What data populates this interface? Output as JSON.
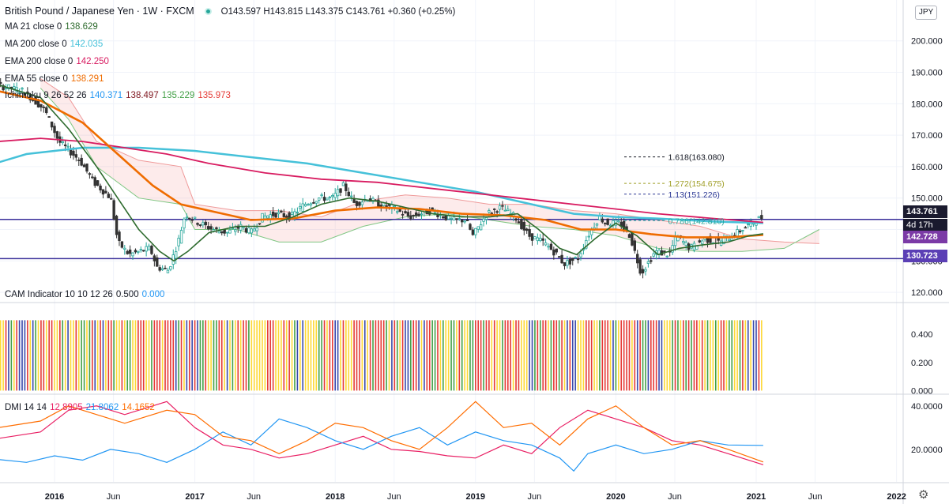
{
  "header": {
    "title": "British Pound / Japanese Yen · 1W · FXCM",
    "ohlc": "O143.597 H143.815 L143.375 C143.761 +0.360 (+0.25%)",
    "currency_button": "JPY"
  },
  "legends": {
    "ma21": {
      "label": "MA 21 close 0",
      "value": "138.629",
      "color": "#2e6b2e"
    },
    "ma200": {
      "label": "MA 200 close 0",
      "value": "142.035",
      "color": "#45c1d9"
    },
    "ema200": {
      "label": "EMA 200 close 0",
      "value": "142.250",
      "color": "#d81b60"
    },
    "ema55": {
      "label": "EMA 55 close 0",
      "value": "138.291",
      "color": "#ef6c00"
    },
    "ichimoku": {
      "label": "Ichimoku 9 26 52 26",
      "values": [
        "140.371",
        "138.497",
        "135.229",
        "135.973"
      ],
      "colors": [
        "#2196f3",
        "#801922",
        "#43a047",
        "#e53935"
      ]
    },
    "cam": {
      "label": "CAM Indicator 10 10 12 26",
      "values": [
        "0.500",
        "0.000"
      ],
      "colors": [
        "#131722",
        "#2196f3"
      ]
    },
    "dmi": {
      "label": "DMI 14 14",
      "values": [
        "12.8905",
        "21.8062",
        "14.1652"
      ],
      "colors": [
        "#e91e63",
        "#2196f3",
        "#ff6d00"
      ]
    }
  },
  "price_labels": [
    {
      "text": "143.761",
      "color": "#1a1a2e"
    },
    {
      "text": "4d 17h",
      "color": "#1a1a2e"
    },
    {
      "text": "142.728",
      "color": "#7b3aa6"
    },
    {
      "text": "130.723",
      "color": "#5b3fb5"
    }
  ],
  "fib_labels": [
    {
      "text": "1.618(163.080)",
      "value": 163.08,
      "color": "#131722"
    },
    {
      "text": "1.272(154.675)",
      "value": 154.675,
      "color": "#9e9d24"
    },
    {
      "text": "1.13(151.226)",
      "value": 151.226,
      "color": "#283593"
    },
    {
      "text": "0.786(142.810)",
      "value": 142.81,
      "color": "#26a69a"
    }
  ],
  "chart_data": {
    "type": "candlestick",
    "x_axis": {
      "labels": [
        "2016",
        "Jun",
        "2017",
        "Jun",
        "2018",
        "Jun",
        "2019",
        "Jun",
        "2020",
        "Jun",
        "2021",
        "Jun",
        "2022"
      ],
      "positions": [
        2016.0,
        2016.42,
        2017.0,
        2017.42,
        2018.0,
        2018.42,
        2019.0,
        2019.42,
        2020.0,
        2020.42,
        2021.0,
        2021.42,
        2022.0
      ]
    },
    "price_axis": {
      "ticks": [
        "120.000",
        "130.000",
        "140.000",
        "150.000",
        "160.000",
        "170.000",
        "180.000",
        "190.000",
        "200.000"
      ],
      "range": [
        117,
        213
      ]
    },
    "cam_axis": {
      "ticks": [
        "0.000",
        "0.200",
        "0.400"
      ],
      "range": [
        -0.02,
        0.62
      ]
    },
    "dmi_axis": {
      "ticks": [
        "20.0000",
        "40.0000"
      ],
      "range": [
        5,
        45
      ]
    },
    "horizontal_lines": [
      {
        "value": 143.2,
        "color": "#3a2f9a"
      },
      {
        "value": 130.723,
        "color": "#3a2f9a"
      }
    ],
    "price_path": [
      [
        2015.25,
        185
      ],
      [
        2015.6,
        186
      ],
      [
        2015.8,
        184
      ],
      [
        2015.95,
        178
      ],
      [
        2016.05,
        168
      ],
      [
        2016.2,
        162
      ],
      [
        2016.3,
        155
      ],
      [
        2016.42,
        150
      ],
      [
        2016.47,
        136
      ],
      [
        2016.55,
        132
      ],
      [
        2016.7,
        134
      ],
      [
        2016.75,
        128
      ],
      [
        2016.83,
        127
      ],
      [
        2016.9,
        136
      ],
      [
        2016.95,
        145
      ],
      [
        2017.05,
        142
      ],
      [
        2017.15,
        140
      ],
      [
        2017.25,
        139
      ],
      [
        2017.35,
        141
      ],
      [
        2017.42,
        139
      ],
      [
        2017.5,
        144
      ],
      [
        2017.6,
        145
      ],
      [
        2017.7,
        144
      ],
      [
        2017.8,
        148
      ],
      [
        2017.9,
        150
      ],
      [
        2018.0,
        150
      ],
      [
        2018.08,
        154
      ],
      [
        2018.16,
        148
      ],
      [
        2018.25,
        150
      ],
      [
        2018.32,
        148
      ],
      [
        2018.42,
        147
      ],
      [
        2018.55,
        144
      ],
      [
        2018.7,
        146
      ],
      [
        2018.85,
        143
      ],
      [
        2018.95,
        143
      ],
      [
        2019.0,
        138
      ],
      [
        2019.1,
        145
      ],
      [
        2019.2,
        147
      ],
      [
        2019.3,
        144
      ],
      [
        2019.4,
        138
      ],
      [
        2019.5,
        136
      ],
      [
        2019.6,
        132
      ],
      [
        2019.65,
        129
      ],
      [
        2019.75,
        131
      ],
      [
        2019.82,
        138
      ],
      [
        2019.9,
        144
      ],
      [
        2019.95,
        142
      ],
      [
        2020.05,
        142
      ],
      [
        2020.12,
        138
      ],
      [
        2020.2,
        126
      ],
      [
        2020.3,
        133
      ],
      [
        2020.4,
        132
      ],
      [
        2020.45,
        138
      ],
      [
        2020.55,
        134
      ],
      [
        2020.65,
        137
      ],
      [
        2020.75,
        136
      ],
      [
        2020.85,
        138
      ],
      [
        2020.95,
        141
      ],
      [
        2021.05,
        143.761
      ]
    ],
    "ma21_path": [
      [
        2015.25,
        188
      ],
      [
        2015.6,
        186
      ],
      [
        2015.9,
        182
      ],
      [
        2016.1,
        172
      ],
      [
        2016.3,
        160
      ],
      [
        2016.45,
        150
      ],
      [
        2016.6,
        140
      ],
      [
        2016.75,
        133
      ],
      [
        2016.85,
        130
      ],
      [
        2016.95,
        133
      ],
      [
        2017.1,
        139
      ],
      [
        2017.3,
        141
      ],
      [
        2017.5,
        141
      ],
      [
        2017.7,
        144
      ],
      [
        2017.9,
        148
      ],
      [
        2018.1,
        150
      ],
      [
        2018.3,
        149
      ],
      [
        2018.5,
        147
      ],
      [
        2018.7,
        145
      ],
      [
        2018.9,
        144
      ],
      [
        2019.1,
        144
      ],
      [
        2019.3,
        145
      ],
      [
        2019.45,
        140
      ],
      [
        2019.6,
        134
      ],
      [
        2019.72,
        132
      ],
      [
        2019.85,
        137
      ],
      [
        2020.0,
        142
      ],
      [
        2020.15,
        138
      ],
      [
        2020.3,
        132
      ],
      [
        2020.45,
        134
      ],
      [
        2020.6,
        135
      ],
      [
        2020.8,
        136
      ],
      [
        2020.95,
        138
      ],
      [
        2021.05,
        138.629
      ]
    ],
    "ma200_path": [
      [
        2015.25,
        155
      ],
      [
        2015.5,
        160
      ],
      [
        2015.8,
        164
      ],
      [
        2016.2,
        166
      ],
      [
        2016.6,
        166
      ],
      [
        2017.0,
        165
      ],
      [
        2017.4,
        163
      ],
      [
        2017.8,
        161
      ],
      [
        2018.2,
        158
      ],
      [
        2018.6,
        155
      ],
      [
        2019.0,
        152
      ],
      [
        2019.4,
        148
      ],
      [
        2019.7,
        145
      ],
      [
        2020.0,
        144
      ],
      [
        2020.3,
        143.5
      ],
      [
        2020.7,
        142.5
      ],
      [
        2021.05,
        142.035
      ]
    ],
    "ema200_path": [
      [
        2015.25,
        166
      ],
      [
        2015.6,
        168
      ],
      [
        2015.9,
        169
      ],
      [
        2016.2,
        168
      ],
      [
        2016.5,
        166
      ],
      [
        2016.8,
        164
      ],
      [
        2017.1,
        161
      ],
      [
        2017.5,
        158
      ],
      [
        2017.9,
        156
      ],
      [
        2018.3,
        155
      ],
      [
        2018.7,
        153
      ],
      [
        2019.1,
        151
      ],
      [
        2019.5,
        149
      ],
      [
        2019.9,
        147
      ],
      [
        2020.3,
        145
      ],
      [
        2020.7,
        143.5
      ],
      [
        2021.05,
        142.25
      ]
    ],
    "ema55_path": [
      [
        2015.25,
        183
      ],
      [
        2015.6,
        184
      ],
      [
        2015.9,
        181
      ],
      [
        2016.2,
        174
      ],
      [
        2016.45,
        164
      ],
      [
        2016.7,
        154
      ],
      [
        2016.9,
        148
      ],
      [
        2017.1,
        146
      ],
      [
        2017.4,
        143
      ],
      [
        2017.7,
        143.5
      ],
      [
        2018.0,
        146
      ],
      [
        2018.3,
        147
      ],
      [
        2018.6,
        146.5
      ],
      [
        2018.9,
        145
      ],
      [
        2019.2,
        144.5
      ],
      [
        2019.5,
        143
      ],
      [
        2019.75,
        140
      ],
      [
        2020.0,
        140
      ],
      [
        2020.25,
        138.5
      ],
      [
        2020.5,
        137.5
      ],
      [
        2020.8,
        137.5
      ],
      [
        2021.05,
        138.291
      ]
    ],
    "cloud_upper": [
      [
        2015.9,
        188
      ],
      [
        2016.1,
        182
      ],
      [
        2016.3,
        168
      ],
      [
        2016.6,
        162
      ],
      [
        2016.9,
        160
      ],
      [
        2017.0,
        148
      ],
      [
        2017.3,
        146
      ],
      [
        2017.6,
        146
      ],
      [
        2017.9,
        144
      ],
      [
        2018.2,
        149
      ],
      [
        2018.5,
        151
      ],
      [
        2018.8,
        150
      ],
      [
        2019.1,
        148
      ],
      [
        2019.4,
        148
      ],
      [
        2019.7,
        146
      ],
      [
        2020.0,
        145
      ],
      [
        2020.3,
        143
      ],
      [
        2020.6,
        141
      ],
      [
        2020.9,
        137
      ],
      [
        2021.2,
        136
      ],
      [
        2021.45,
        135.5
      ]
    ],
    "cloud_lower": [
      [
        2015.9,
        185
      ],
      [
        2016.1,
        175
      ],
      [
        2016.3,
        160
      ],
      [
        2016.6,
        150
      ],
      [
        2016.9,
        148
      ],
      [
        2017.0,
        140
      ],
      [
        2017.3,
        140
      ],
      [
        2017.6,
        136
      ],
      [
        2017.9,
        136
      ],
      [
        2018.2,
        141
      ],
      [
        2018.5,
        144
      ],
      [
        2018.8,
        145
      ],
      [
        2019.1,
        143
      ],
      [
        2019.4,
        141
      ],
      [
        2019.7,
        140
      ],
      [
        2020.0,
        138
      ],
      [
        2020.3,
        134
      ],
      [
        2020.6,
        133
      ],
      [
        2020.9,
        133
      ],
      [
        2021.2,
        134
      ],
      [
        2021.45,
        140
      ]
    ],
    "dmi_plus": [
      [
        2015.25,
        18
      ],
      [
        2015.6,
        25
      ],
      [
        2015.9,
        28
      ],
      [
        2016.1,
        38
      ],
      [
        2016.3,
        40
      ],
      [
        2016.5,
        36
      ],
      [
        2016.8,
        42
      ],
      [
        2017.0,
        30
      ],
      [
        2017.2,
        22
      ],
      [
        2017.4,
        20
      ],
      [
        2017.6,
        16
      ],
      [
        2017.8,
        18
      ],
      [
        2018.0,
        22
      ],
      [
        2018.2,
        26
      ],
      [
        2018.4,
        20
      ],
      [
        2018.6,
        19
      ],
      [
        2018.8,
        17
      ],
      [
        2019.0,
        16
      ],
      [
        2019.2,
        22
      ],
      [
        2019.4,
        18
      ],
      [
        2019.6,
        30
      ],
      [
        2019.8,
        38
      ],
      [
        2020.0,
        34
      ],
      [
        2020.2,
        30
      ],
      [
        2020.4,
        24
      ],
      [
        2020.6,
        22
      ],
      [
        2020.8,
        18
      ],
      [
        2021.05,
        12.89
      ]
    ],
    "dmi_minus": [
      [
        2015.25,
        20
      ],
      [
        2015.5,
        16
      ],
      [
        2015.8,
        14
      ],
      [
        2016.0,
        17
      ],
      [
        2016.2,
        15
      ],
      [
        2016.4,
        20
      ],
      [
        2016.6,
        18
      ],
      [
        2016.8,
        14
      ],
      [
        2017.0,
        20
      ],
      [
        2017.2,
        28
      ],
      [
        2017.4,
        22
      ],
      [
        2017.6,
        34
      ],
      [
        2017.8,
        30
      ],
      [
        2018.0,
        24
      ],
      [
        2018.2,
        20
      ],
      [
        2018.4,
        26
      ],
      [
        2018.6,
        30
      ],
      [
        2018.8,
        22
      ],
      [
        2019.0,
        28
      ],
      [
        2019.2,
        24
      ],
      [
        2019.4,
        22
      ],
      [
        2019.6,
        16
      ],
      [
        2019.7,
        10
      ],
      [
        2019.8,
        18
      ],
      [
        2020.0,
        22
      ],
      [
        2020.2,
        18
      ],
      [
        2020.4,
        20
      ],
      [
        2020.6,
        24
      ],
      [
        2020.8,
        22
      ],
      [
        2021.05,
        21.81
      ]
    ],
    "adx": [
      [
        2015.25,
        22
      ],
      [
        2015.6,
        30
      ],
      [
        2015.9,
        33
      ],
      [
        2016.1,
        40
      ],
      [
        2016.3,
        36
      ],
      [
        2016.5,
        32
      ],
      [
        2016.8,
        38
      ],
      [
        2017.0,
        36
      ],
      [
        2017.2,
        26
      ],
      [
        2017.4,
        24
      ],
      [
        2017.6,
        18
      ],
      [
        2017.8,
        24
      ],
      [
        2018.0,
        32
      ],
      [
        2018.2,
        30
      ],
      [
        2018.4,
        24
      ],
      [
        2018.6,
        20
      ],
      [
        2018.8,
        30
      ],
      [
        2019.0,
        42
      ],
      [
        2019.2,
        30
      ],
      [
        2019.4,
        32
      ],
      [
        2019.6,
        22
      ],
      [
        2019.8,
        34
      ],
      [
        2020.0,
        40
      ],
      [
        2020.2,
        30
      ],
      [
        2020.4,
        22
      ],
      [
        2020.6,
        24
      ],
      [
        2020.8,
        20
      ],
      [
        2021.05,
        14.17
      ]
    ],
    "fib_levels": [
      163.08,
      154.675,
      151.226,
      142.81
    ]
  }
}
